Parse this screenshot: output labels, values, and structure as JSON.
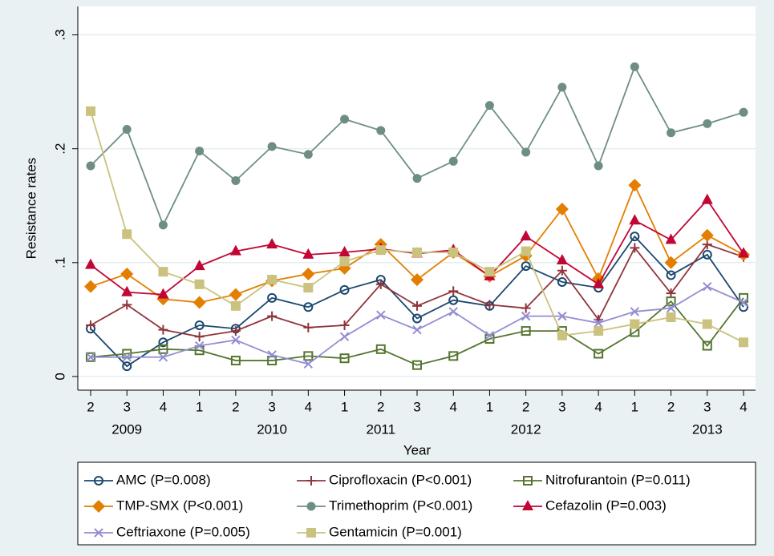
{
  "chart_data": {
    "type": "line",
    "y_label": "Resistance rates",
    "x_label": "Year",
    "categories": [
      "2",
      "3",
      "4",
      "1",
      "2",
      "3",
      "4",
      "1",
      "2",
      "3",
      "4",
      "1",
      "2",
      "3",
      "4",
      "1",
      "2",
      "3",
      "4"
    ],
    "years": [
      null,
      "2009",
      null,
      null,
      null,
      "2010",
      null,
      null,
      "2011",
      null,
      null,
      null,
      "2012",
      null,
      null,
      null,
      null,
      "2013",
      null
    ],
    "ylim": [
      -0.012,
      0.325
    ],
    "yticks": [
      0,
      {
        "value": 0.1,
        "label": ".1"
      },
      {
        "value": 0.2,
        "label": ".2"
      },
      {
        "value": 0.3,
        "label": ".3"
      }
    ],
    "grid": true,
    "legend": "bottom",
    "series": [
      {
        "name": "AMC (P=0.008)",
        "color": "#1a476f",
        "marker": "circle-hollow",
        "values": [
          0.042,
          0.009,
          0.03,
          0.045,
          0.042,
          0.069,
          0.061,
          0.076,
          0.085,
          0.051,
          0.067,
          0.062,
          0.097,
          0.083,
          0.078,
          0.123,
          0.089,
          0.107,
          0.061
        ]
      },
      {
        "name": "Ciprofloxacin (P<0.001)",
        "color": "#90353b",
        "marker": "plus",
        "values": [
          0.045,
          0.063,
          0.041,
          0.035,
          0.04,
          0.053,
          0.043,
          0.045,
          0.081,
          0.062,
          0.075,
          0.063,
          0.06,
          0.093,
          0.05,
          0.113,
          0.073,
          0.116,
          0.105
        ]
      },
      {
        "name": "Nitrofurantoin (P=0.011)",
        "color": "#55752f",
        "marker": "square-hollow",
        "values": [
          0.017,
          0.02,
          0.024,
          0.023,
          0.014,
          0.014,
          0.018,
          0.016,
          0.024,
          0.01,
          0.018,
          0.033,
          0.04,
          0.04,
          0.02,
          0.039,
          0.066,
          0.027,
          0.069
        ]
      },
      {
        "name": "TMP-SMX (P<0.001)",
        "color": "#e37e00",
        "marker": "diamond",
        "values": [
          0.079,
          0.09,
          0.068,
          0.065,
          0.072,
          0.084,
          0.09,
          0.095,
          0.116,
          0.085,
          0.109,
          0.088,
          0.106,
          0.147,
          0.086,
          0.168,
          0.1,
          0.124,
          0.107
        ]
      },
      {
        "name": "Trimethoprim (P<0.001)",
        "color": "#6e8e84",
        "marker": "circle",
        "values": [
          0.185,
          0.217,
          0.133,
          0.198,
          0.172,
          0.202,
          0.195,
          0.226,
          0.216,
          0.174,
          0.189,
          0.238,
          0.197,
          0.254,
          0.185,
          0.272,
          0.214,
          0.222,
          0.232
        ]
      },
      {
        "name": "Cefazolin (P=0.003)",
        "color": "#c10534",
        "marker": "triangle",
        "values": [
          0.098,
          0.074,
          0.072,
          0.097,
          0.11,
          0.116,
          0.107,
          0.109,
          0.112,
          0.108,
          0.111,
          0.088,
          0.123,
          0.102,
          0.081,
          0.137,
          0.12,
          0.155,
          0.108
        ]
      },
      {
        "name": "Ceftriaxone (P=0.005)",
        "color": "#938dd2",
        "marker": "x",
        "values": [
          0.017,
          0.017,
          0.017,
          0.027,
          0.032,
          0.019,
          0.011,
          0.035,
          0.054,
          0.041,
          0.057,
          0.036,
          0.053,
          0.053,
          0.047,
          0.057,
          0.06,
          0.079,
          0.065
        ]
      },
      {
        "name": "Gentamicin (P=0.001)",
        "color": "#cac27e",
        "marker": "square",
        "values": [
          0.233,
          0.125,
          0.092,
          0.081,
          0.062,
          0.085,
          0.078,
          0.101,
          0.111,
          0.109,
          0.109,
          0.092,
          0.11,
          0.036,
          0.04,
          0.046,
          0.052,
          0.046,
          0.03
        ]
      }
    ]
  }
}
